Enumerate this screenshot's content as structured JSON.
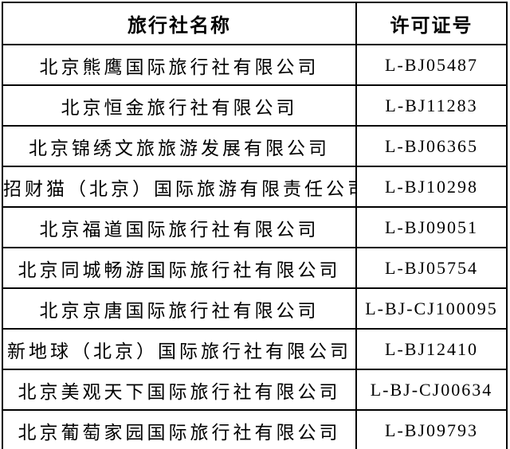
{
  "table": {
    "columns": {
      "name_header": "旅行社名称",
      "license_header": "许可证号"
    },
    "rows": [
      {
        "name": "北京熊鹰国际旅行社有限公司",
        "license": "L-BJ05487"
      },
      {
        "name": "北京恒金旅行社有限公司",
        "license": "L-BJ11283"
      },
      {
        "name": "北京锦绣文旅旅游发展有限公司",
        "license": "L-BJ06365"
      },
      {
        "name": "招财猫（北京）国际旅游有限责任公司",
        "license": "L-BJ10298"
      },
      {
        "name": "北京福道国际旅行社有限公司",
        "license": "L-BJ09051"
      },
      {
        "name": "北京同城畅游国际旅行社有限公司",
        "license": "L-BJ05754"
      },
      {
        "name": "北京京唐国际旅行社有限公司",
        "license": "L-BJ-CJ100095"
      },
      {
        "name": "新地球（北京）国际旅行社有限公司",
        "license": "L-BJ12410"
      },
      {
        "name": "北京美观天下国际旅行社有限公司",
        "license": "L-BJ-CJ00634"
      },
      {
        "name": "北京葡萄家园国际旅行社有限公司",
        "license": "L-BJ09793"
      }
    ],
    "colors": {
      "border": "#000000",
      "text": "#000000",
      "background": "#ffffff"
    }
  }
}
